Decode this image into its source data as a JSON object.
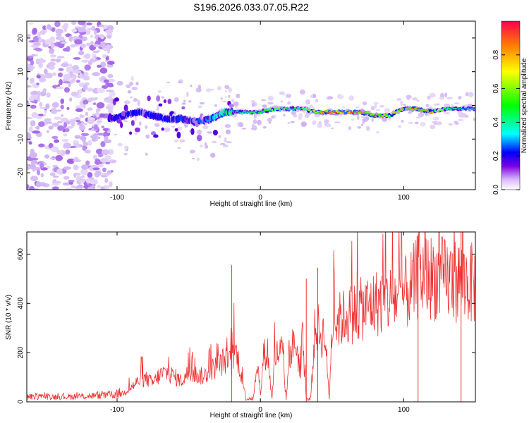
{
  "chart_data": [
    {
      "type": "heatmap",
      "title": "S196.2026.033.07.05.R22",
      "xlabel": "Height of straight line (km)",
      "ylabel": "Frequency (Hz)",
      "xlim": [
        -163,
        150
      ],
      "ylim": [
        -25,
        25
      ],
      "xticks": [
        -100,
        0,
        100
      ],
      "yticks": [
        -20,
        -10,
        0,
        10,
        20
      ],
      "colorbar": {
        "label": "Normalized spectral amplitude",
        "range": [
          0,
          1
        ],
        "ticks": [
          0.0,
          0.2,
          0.4,
          0.6,
          0.8
        ],
        "stops": [
          "#ffffff",
          "#c9a9f2",
          "#6a00d9",
          "#0000ff",
          "#00ffff",
          "#00ff00",
          "#ffff00",
          "#ff8000",
          "#ff0050"
        ]
      },
      "ridge": {
        "x": [
          -105,
          -95,
          -85,
          -75,
          -65,
          -55,
          -45,
          -35,
          -25,
          -15,
          0,
          10,
          20,
          30,
          40,
          50,
          60,
          70,
          80,
          90,
          100,
          110,
          120,
          130,
          140,
          150
        ],
        "frequency": [
          -4,
          -3,
          -2,
          -3,
          -4,
          -4,
          -5,
          -4,
          -2,
          -2,
          -2,
          -1,
          -1,
          -1,
          -2,
          -2,
          -2,
          -2,
          -3,
          -3,
          -1,
          -1,
          -2,
          -1,
          -1,
          -1
        ],
        "amplitude": [
          0.35,
          0.35,
          0.38,
          0.38,
          0.38,
          0.4,
          0.4,
          0.45,
          0.55,
          0.6,
          0.6,
          0.7,
          0.6,
          0.65,
          0.8,
          0.95,
          0.95,
          0.9,
          0.9,
          0.75,
          0.85,
          0.9,
          0.85,
          0.6,
          0.55,
          0.55
        ]
      }
    },
    {
      "type": "line",
      "xlabel": "Height of straight line (km)",
      "ylabel": "SNR (10 * v/v)",
      "xlim": [
        -163,
        150
      ],
      "ylim": [
        0,
        690
      ],
      "xticks": [
        -100,
        0,
        100
      ],
      "yticks": [
        0,
        200,
        400,
        600
      ],
      "color": "#ee3030",
      "series": [
        {
          "name": "SNR",
          "x": [
            -163,
            -150,
            -140,
            -130,
            -120,
            -110,
            -100,
            -95,
            -90,
            -85,
            -80,
            -75,
            -70,
            -65,
            -60,
            -55,
            -50,
            -45,
            -40,
            -35,
            -30,
            -25,
            -20,
            -18,
            -15,
            -10,
            -8,
            -5,
            -2,
            0,
            2,
            5,
            8,
            10,
            12,
            15,
            18,
            20,
            22,
            25,
            28,
            30,
            32,
            35,
            38,
            40,
            42,
            45,
            48,
            50,
            60,
            70,
            80,
            90,
            100,
            105,
            110,
            120,
            130,
            140,
            150
          ],
          "y": [
            20,
            22,
            20,
            22,
            24,
            25,
            30,
            45,
            70,
            100,
            110,
            90,
            130,
            140,
            120,
            100,
            140,
            130,
            120,
            150,
            170,
            200,
            180,
            250,
            190,
            10,
            15,
            12,
            200,
            10,
            220,
            240,
            10,
            210,
            230,
            250,
            10,
            230,
            260,
            280,
            120,
            240,
            10,
            10,
            340,
            360,
            310,
            330,
            10,
            370,
            410,
            440,
            470,
            490,
            510,
            540,
            600,
            595,
            585,
            580,
            560
          ]
        }
      ],
      "peaks": [
        {
          "x": -20,
          "y": 555
        },
        {
          "x": 40,
          "y": 545
        },
        {
          "x": 32,
          "y": 500
        },
        {
          "x": 110,
          "y": 680
        },
        {
          "x": 140,
          "y": 690
        }
      ]
    }
  ]
}
